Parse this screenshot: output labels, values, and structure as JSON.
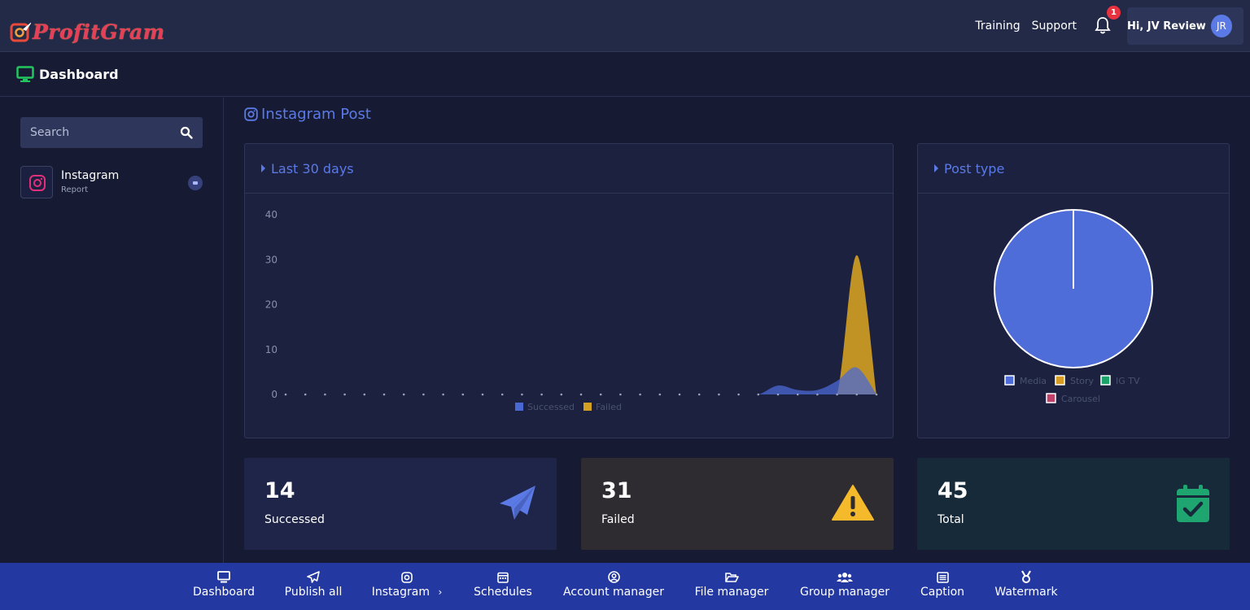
{
  "brand": {
    "name": "ProfitGram"
  },
  "topnav": {
    "training": "Training",
    "support": "Support",
    "notifications": "1",
    "greeting": "Hi, JV Review",
    "initials": "JR"
  },
  "subheader": {
    "title": "Dashboard"
  },
  "sidebar": {
    "search_placeholder": "Search",
    "items": [
      {
        "label": "Instagram",
        "sublabel": "Report"
      }
    ]
  },
  "main": {
    "section_title": "Instagram Post",
    "chart_last30_title": "Last 30 days",
    "chart_posttype_title": "Post type"
  },
  "chart_data": [
    {
      "type": "area",
      "title": "Last 30 days",
      "ylim": [
        0,
        40
      ],
      "yticks": [
        "0",
        "10",
        "20",
        "30",
        "40"
      ],
      "x": [
        1,
        2,
        3,
        4,
        5,
        6,
        7,
        8,
        9,
        10,
        11,
        12,
        13,
        14,
        15,
        16,
        17,
        18,
        19,
        20,
        21,
        22,
        23,
        24,
        25,
        26,
        27,
        28,
        29,
        30,
        31
      ],
      "series": [
        {
          "name": "Successed",
          "color": "#4a68d3",
          "values": [
            0,
            0,
            0,
            0,
            0,
            0,
            0,
            0,
            0,
            0,
            0,
            0,
            0,
            0,
            0,
            0,
            0,
            0,
            0,
            0,
            0,
            0,
            0,
            0,
            0,
            2,
            1,
            1,
            3,
            6,
            0
          ]
        },
        {
          "name": "Failed",
          "color": "#d4a021",
          "values": [
            0,
            0,
            0,
            0,
            0,
            0,
            0,
            0,
            0,
            0,
            0,
            0,
            0,
            0,
            0,
            0,
            0,
            0,
            0,
            0,
            0,
            0,
            0,
            0,
            0,
            0,
            0,
            0,
            0,
            31,
            0
          ]
        }
      ],
      "legend": "bottom",
      "grid": false
    },
    {
      "type": "pie",
      "title": "Post type",
      "labels": [
        "Media",
        "Story",
        "IG TV",
        "Carousel"
      ],
      "values": [
        45,
        0,
        0,
        0
      ],
      "colors": [
        "#4f6dd8",
        "#d69b22",
        "#1ba36b",
        "#c23f6a"
      ],
      "legend": "bottom"
    }
  ],
  "stats": [
    {
      "value": "14",
      "label": "Successed",
      "icon": "paper-plane-icon",
      "color": "#5b7ae6"
    },
    {
      "value": "31",
      "label": "Failed",
      "icon": "warning-icon",
      "color": "#f5b92c"
    },
    {
      "value": "45",
      "label": "Total",
      "icon": "calendar-check-icon",
      "color": "#1fa56f"
    }
  ],
  "bottomnav": {
    "items": [
      {
        "label": "Dashboard",
        "icon": "monitor-icon"
      },
      {
        "label": "Publish all",
        "icon": "paper-plane-icon"
      },
      {
        "label": "Instagram",
        "icon": "instagram-icon"
      },
      {
        "label": "Schedules",
        "icon": "calendar-icon"
      },
      {
        "label": "Account manager",
        "icon": "user-circle-icon"
      },
      {
        "label": "File manager",
        "icon": "folder-open-icon"
      },
      {
        "label": "Group manager",
        "icon": "users-icon"
      },
      {
        "label": "Caption",
        "icon": "list-icon"
      },
      {
        "label": "Watermark",
        "icon": "award-icon"
      }
    ]
  }
}
